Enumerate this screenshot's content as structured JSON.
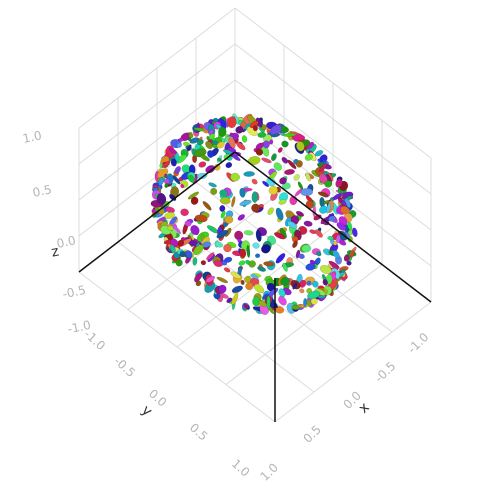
{
  "chart_data": {
    "type": "scatter",
    "subtype": "3d-ellipsoids-in-sphere",
    "title": "",
    "axes": {
      "x": {
        "label": "x",
        "range": [
          -1,
          1
        ],
        "ticks": [
          "-1.0",
          "-0.5",
          "0.0",
          "0.5",
          "1.0"
        ]
      },
      "y": {
        "label": "y",
        "range": [
          -1,
          1
        ],
        "ticks": [
          "-1.0",
          "-0.5",
          "0.0",
          "0.5",
          "1.0"
        ]
      },
      "z": {
        "label": "z",
        "range": [
          -1,
          1
        ],
        "ticks": [
          "-1.0",
          "-0.5",
          "0.0",
          "0.5",
          "1.0"
        ]
      }
    },
    "grid": true,
    "legend": "none",
    "sphere_radius": 0.8,
    "ellipsoid_count": 650,
    "random_colors": true,
    "colors": {
      "grid": "#dcdcdc",
      "zero_axis": "#111111",
      "tick_text": "#b5b5b5",
      "title_text": "#333333"
    }
  }
}
